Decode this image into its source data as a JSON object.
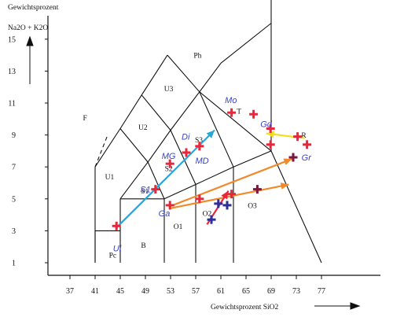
{
  "chart_data": {
    "type": "scatter",
    "subtype": "TAS classification diagram",
    "ylabel_line1": "Gewichtsprozent",
    "ylabel_line2": "Na2O + K2O",
    "xlabel": "Gewichtsprozent  SiO2",
    "x_ticks": [
      37,
      41,
      45,
      49,
      53,
      57,
      61,
      65,
      69,
      73,
      77
    ],
    "y_ticks": [
      1,
      3,
      5,
      7,
      9,
      11,
      13,
      15
    ],
    "xlim": [
      35,
      78
    ],
    "ylim": [
      0,
      16
    ],
    "grid": false,
    "fields": [
      {
        "label": "Ph",
        "x": 57.3,
        "y": 14.0
      },
      {
        "label": "U3",
        "x": 52.7,
        "y": 11.9
      },
      {
        "label": "U2",
        "x": 48.6,
        "y": 9.5
      },
      {
        "label": "U1",
        "x": 43.3,
        "y": 6.4
      },
      {
        "label": "F",
        "x": 39.4,
        "y": 10.1
      },
      {
        "label": "S3",
        "x": 57.5,
        "y": 8.7
      },
      {
        "label": "S2",
        "x": 52.7,
        "y": 6.9
      },
      {
        "label": "S1",
        "x": 48.9,
        "y": 5.5
      },
      {
        "label": "T",
        "x": 63.9,
        "y": 10.5
      },
      {
        "label": "R",
        "x": 74.2,
        "y": 9.0
      },
      {
        "label": "B",
        "x": 48.7,
        "y": 2.1
      },
      {
        "label": "O1",
        "x": 54.2,
        "y": 3.3
      },
      {
        "label": "O2",
        "x": 58.8,
        "y": 4.1
      },
      {
        "label": "O3",
        "x": 66.0,
        "y": 4.6
      },
      {
        "label": "Pc",
        "x": 43.8,
        "y": 1.5
      }
    ],
    "sample_labels": [
      {
        "label": "Ul",
        "x": 44.5,
        "y": 1.9
      },
      {
        "label": "Ga",
        "x": 52.0,
        "y": 4.1
      },
      {
        "label": "S1",
        "x": 49.0,
        "y": 5.6
      },
      {
        "label": "MG",
        "x": 52.7,
        "y": 7.7
      },
      {
        "label": "Di",
        "x": 55.4,
        "y": 8.9
      },
      {
        "label": "MD",
        "x": 58.0,
        "y": 7.4
      },
      {
        "label": "Mo",
        "x": 62.6,
        "y": 11.2
      },
      {
        "label": "Gd",
        "x": 68.2,
        "y": 9.7
      },
      {
        "label": "Gr",
        "x": 74.6,
        "y": 7.6
      }
    ],
    "series": [
      {
        "color": "#e8283a",
        "marker": "plus",
        "points": [
          [
            44.4,
            3.3
          ],
          [
            50.6,
            5.6
          ],
          [
            52.9,
            4.6
          ],
          [
            52.9,
            7.2
          ],
          [
            55.5,
            7.9
          ],
          [
            57.6,
            8.3
          ],
          [
            57.6,
            5.0
          ],
          [
            62.7,
            10.4
          ],
          [
            62.7,
            5.3
          ],
          [
            66.2,
            10.3
          ],
          [
            68.9,
            9.4
          ],
          [
            68.9,
            8.4
          ],
          [
            73.2,
            8.9
          ],
          [
            74.7,
            8.4
          ]
        ]
      },
      {
        "color": "#2b2f9a",
        "marker": "plus",
        "points": [
          [
            59.5,
            3.7
          ],
          [
            60.6,
            4.7
          ],
          [
            62.0,
            4.6
          ]
        ]
      },
      {
        "color": "#7a1640",
        "marker": "plus",
        "points": [
          [
            66.8,
            5.6
          ],
          [
            72.5,
            7.6
          ]
        ]
      }
    ],
    "trend_arrows": [
      {
        "color": "#2aa5d8",
        "from": [
          44.4,
          3.2
        ],
        "to": [
          60.0,
          9.3
        ]
      },
      {
        "color": "#f28a2c",
        "from": [
          52.7,
          4.5
        ],
        "to": [
          72.3,
          7.5
        ]
      },
      {
        "color": "#f28a2c",
        "from": [
          52.9,
          4.4
        ],
        "to": [
          71.8,
          5.9
        ]
      },
      {
        "color": "#f2e01c",
        "from": [
          74.3,
          8.8
        ],
        "to": [
          68.2,
          9.1
        ]
      },
      {
        "color": "#e8283a",
        "from": [
          58.8,
          3.4
        ],
        "to": [
          62.2,
          5.5
        ]
      }
    ]
  }
}
